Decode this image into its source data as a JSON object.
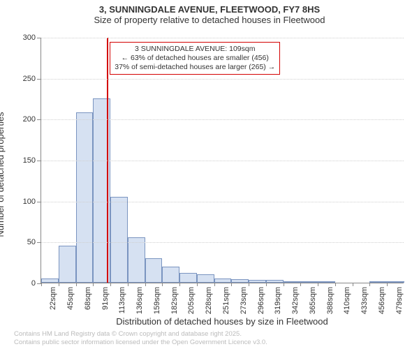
{
  "chart": {
    "type": "histogram",
    "title_line1": "3, SUNNINGDALE AVENUE, FLEETWOOD, FY7 8HS",
    "title_line2": "Size of property relative to detached houses in Fleetwood",
    "title_fontsize": 13,
    "y_axis_label": "Number of detached properties",
    "x_axis_label": "Distribution of detached houses by size in Fleetwood",
    "axis_label_fontsize": 13,
    "tick_fontsize": 11,
    "background_color": "#ffffff",
    "grid_color": "#cfcfcf",
    "axis_color": "#888888",
    "bar_fill": "#d6e1f2",
    "bar_border": "#7a94c0",
    "bar_width_ratio": 1.0,
    "ylim": [
      0,
      300
    ],
    "yticks": [
      0,
      50,
      100,
      150,
      200,
      250,
      300
    ],
    "x_tick_labels": [
      "22sqm",
      "45sqm",
      "68sqm",
      "91sqm",
      "113sqm",
      "136sqm",
      "159sqm",
      "182sqm",
      "205sqm",
      "228sqm",
      "251sqm",
      "273sqm",
      "296sqm",
      "319sqm",
      "342sqm",
      "365sqm",
      "388sqm",
      "410sqm",
      "433sqm",
      "456sqm",
      "479sqm"
    ],
    "data": {
      "bin_start_sqm": [
        22,
        45,
        68,
        91,
        113,
        136,
        159,
        182,
        205,
        228,
        251,
        273,
        296,
        319,
        342,
        365,
        388,
        410,
        433,
        456,
        479
      ],
      "counts": [
        5,
        45,
        208,
        225,
        105,
        55,
        30,
        20,
        12,
        10,
        5,
        4,
        3,
        3,
        2,
        1,
        1,
        0,
        0,
        1,
        1
      ]
    },
    "marker": {
      "color": "#d40000",
      "value_sqm": 109,
      "line_width": 2,
      "box": {
        "border_color": "#d40000",
        "background": "#ffffff",
        "fontsize": 10.5,
        "line1": "3 SUNNINGDALE AVENUE: 109sqm",
        "line2": "← 63% of detached houses are smaller (456)",
        "line3": "37% of semi-detached houses are larger (265) →"
      }
    },
    "footer_line1": "Contains HM Land Registry data © Crown copyright and database right 2025.",
    "footer_line2": "Contains public sector information licensed under the Open Government Licence v3.0.",
    "footer_color": "#bbbbbb",
    "footer_fontsize": 9.5
  }
}
